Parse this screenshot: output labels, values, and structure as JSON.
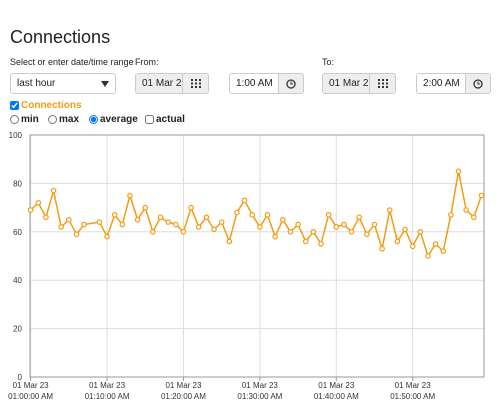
{
  "title": "Connections",
  "range_label": "Select or enter date/time range",
  "range_select": "last hour",
  "from_label": "From:",
  "from_date": "01 Mar 2",
  "from_time": "1:00 AM",
  "to_label": "To:",
  "to_date": "01 Mar 2",
  "to_time": "2:00 AM",
  "modes": [
    "min",
    "max",
    "average",
    "actual"
  ],
  "selected_mode": 2,
  "chart_data": {
    "type": "line",
    "x": [
      "2023-03-01T01:00:00",
      "2023-03-01T01:01:00",
      "2023-03-01T01:02:00",
      "2023-03-01T01:03:00",
      "2023-03-01T01:04:00",
      "2023-03-01T01:05:00",
      "2023-03-01T01:06:00",
      "2023-03-01T01:07:00",
      "2023-03-01T01:09:00",
      "2023-03-01T01:10:00",
      "2023-03-01T01:11:00",
      "2023-03-01T01:12:00",
      "2023-03-01T01:13:00",
      "2023-03-01T01:14:00",
      "2023-03-01T01:15:00",
      "2023-03-01T01:16:00",
      "2023-03-01T01:17:00",
      "2023-03-01T01:18:00",
      "2023-03-01T01:19:00",
      "2023-03-01T01:20:00",
      "2023-03-01T01:21:00",
      "2023-03-01T01:22:00",
      "2023-03-01T01:23:00",
      "2023-03-01T01:24:00",
      "2023-03-01T01:25:00",
      "2023-03-01T01:26:00",
      "2023-03-01T01:27:00",
      "2023-03-01T01:28:00",
      "2023-03-01T01:29:00",
      "2023-03-01T01:30:00",
      "2023-03-01T01:31:00",
      "2023-03-01T01:32:00",
      "2023-03-01T01:33:00",
      "2023-03-01T01:34:00",
      "2023-03-01T01:35:00",
      "2023-03-01T01:36:00",
      "2023-03-01T01:37:00",
      "2023-03-01T01:38:00",
      "2023-03-01T01:39:00",
      "2023-03-01T01:40:00",
      "2023-03-01T01:41:00",
      "2023-03-01T01:42:00",
      "2023-03-01T01:43:00",
      "2023-03-01T01:44:00",
      "2023-03-01T01:45:00",
      "2023-03-01T01:46:00",
      "2023-03-01T01:47:00",
      "2023-03-01T01:48:00",
      "2023-03-01T01:49:00",
      "2023-03-01T01:50:00",
      "2023-03-01T01:51:00",
      "2023-03-01T01:52:00",
      "2023-03-01T01:53:00",
      "2023-03-01T01:54:00",
      "2023-03-01T01:55:00",
      "2023-03-01T01:56:00",
      "2023-03-01T01:57:00",
      "2023-03-01T01:58:00",
      "2023-03-01T01:59:00"
    ],
    "series": [
      {
        "name": "Connections",
        "color": "#f39c12",
        "values": [
          69,
          72,
          66,
          77,
          62,
          65,
          59,
          63,
          64,
          58,
          67,
          63,
          75,
          65,
          70,
          60,
          66,
          64,
          63,
          60,
          70,
          62,
          66,
          61,
          64,
          56,
          68,
          73,
          67,
          62,
          67,
          58,
          65,
          60,
          63,
          56,
          60,
          55,
          67,
          62,
          63,
          60,
          66,
          59,
          63,
          53,
          69,
          56,
          61,
          54,
          60,
          50,
          55,
          52,
          67,
          85,
          69,
          66,
          75
        ]
      }
    ],
    "xlim": [
      "2023-03-01T00:59:55",
      "2023-03-01T01:59:20"
    ],
    "xticks": [
      {
        "value": "2023-03-01T01:00:00",
        "label": [
          "01 Mar 23",
          "01:00:00 AM"
        ]
      },
      {
        "value": "2023-03-01T01:10:00",
        "label": [
          "01 Mar 23",
          "01:10:00 AM"
        ]
      },
      {
        "value": "2023-03-01T01:20:00",
        "label": [
          "01 Mar 23",
          "01:20:00 AM"
        ]
      },
      {
        "value": "2023-03-01T01:30:00",
        "label": [
          "01 Mar 23",
          "01:30:00 AM"
        ]
      },
      {
        "value": "2023-03-01T01:40:00",
        "label": [
          "01 Mar 23",
          "01:40:00 AM"
        ]
      },
      {
        "value": "2023-03-01T01:50:00",
        "label": [
          "01 Mar 23",
          "01:50:00 AM"
        ]
      }
    ],
    "ylim": [
      0,
      100
    ],
    "yticks": [
      0,
      20,
      40,
      60,
      80,
      100
    ],
    "grid": true
  }
}
